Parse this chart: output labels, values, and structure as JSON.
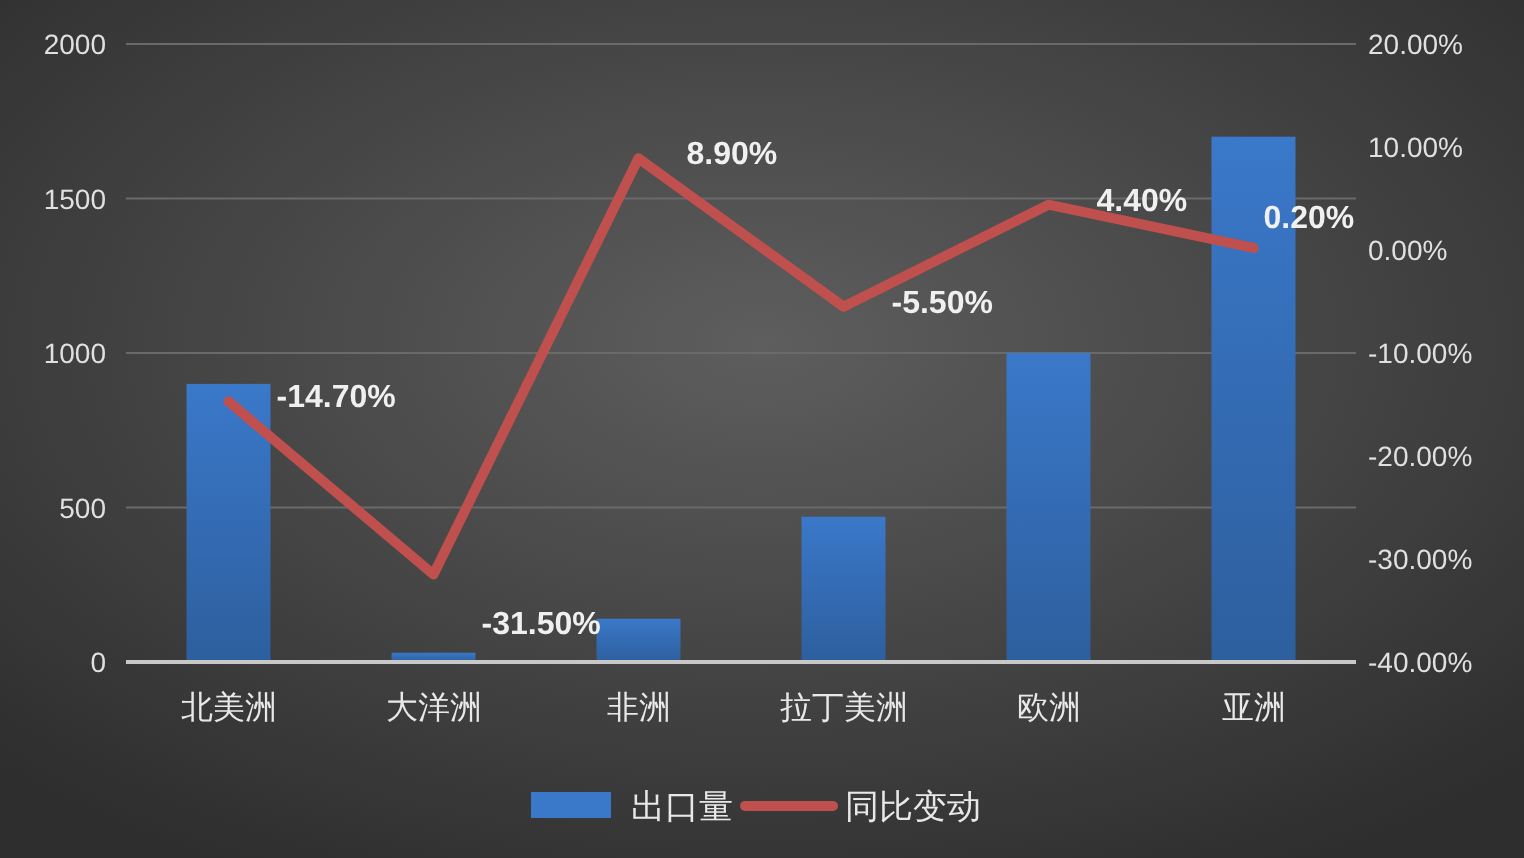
{
  "chart_data": {
    "type": "bar",
    "categories": [
      "北美洲",
      "大洋洲",
      "非洲",
      "拉丁美洲",
      "欧洲",
      "亚洲"
    ],
    "series": [
      {
        "name": "出口量",
        "color": "#3a78c9",
        "values": [
          900,
          30,
          140,
          470,
          1000,
          1700
        ]
      },
      {
        "name": "同比变动",
        "type": "line",
        "axis": "y2",
        "color": "#c0504d",
        "values": [
          -14.7,
          -31.5,
          8.9,
          -5.5,
          4.4,
          0.2
        ],
        "value_labels": [
          "-14.70%",
          "-31.50%",
          "8.90%",
          "-5.50%",
          "4.40%",
          "0.20%"
        ]
      }
    ],
    "ylim": [
      0,
      2000
    ],
    "yticks": [
      0,
      500,
      1000,
      1500,
      2000
    ],
    "y2lim": [
      -40,
      20
    ],
    "y2ticks": [
      {
        "value": -40,
        "label": "-40.00%"
      },
      {
        "value": -30,
        "label": "-30.00%"
      },
      {
        "value": -20,
        "label": "-20.00%"
      },
      {
        "value": -10,
        "label": "-10.00%"
      },
      {
        "value": 0,
        "label": "0.00%"
      },
      {
        "value": 10,
        "label": "10.00%"
      },
      {
        "value": 20,
        "label": "20.00%"
      }
    ],
    "grid": "y",
    "legend": "bottom",
    "marker": "none",
    "line_style": "solid"
  }
}
